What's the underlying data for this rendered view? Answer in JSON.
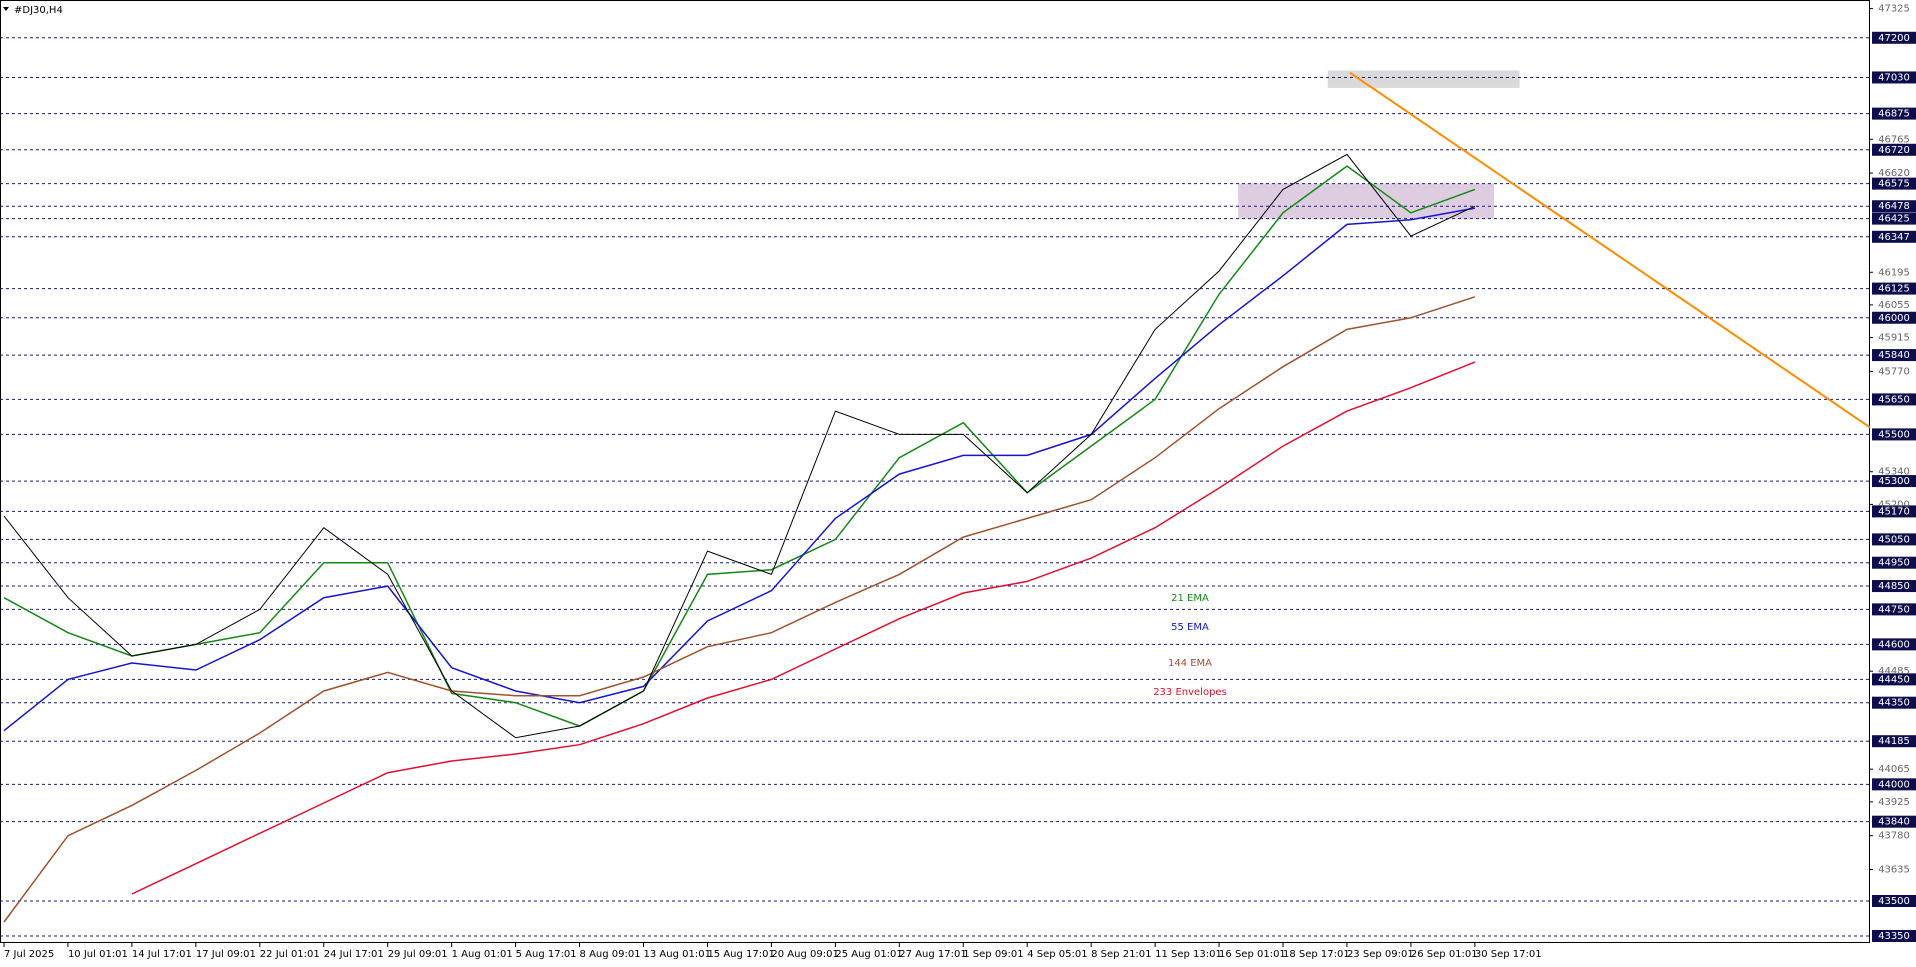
{
  "chart_data": {
    "type": "line",
    "title": "#DJ30,H4",
    "categories": [
      "7 Jul 2025",
      "10 Jul 01:01",
      "14 Jul 17:01",
      "17 Jul 09:01",
      "22 Jul 01:01",
      "24 Jul 17:01",
      "29 Jul 09:01",
      "1 Aug 01:01",
      "5 Aug 17:01",
      "8 Aug 09:01",
      "13 Aug 01:01",
      "15 Aug 17:01",
      "20 Aug 09:01",
      "25 Aug 01:01",
      "27 Aug 17:01",
      "1 Sep 09:01",
      "4 Sep 05:01",
      "8 Sep 21:01",
      "11 Sep 13:01",
      "16 Sep 01:01",
      "18 Sep 17:01",
      "23 Sep 09:01",
      "26 Sep 01:01",
      "30 Sep 17:01"
    ],
    "values": [
      45150,
      44800,
      44550,
      44600,
      44750,
      45100,
      44900,
      44400,
      44200,
      44250,
      44400,
      45000,
      44900,
      45600,
      45500,
      45500,
      45250,
      45500,
      45950,
      46200,
      46550,
      46700,
      46350,
      46478
    ],
    "color": "#000000",
    "series": [
      {
        "name": "21 EMA",
        "color": "#138a13",
        "values": [
          44800,
          44650,
          44550,
          44600,
          44650,
          44950,
          44950,
          44390,
          44350,
          44250,
          44400,
          44900,
          44920,
          45050,
          45400,
          45550,
          45250,
          45450,
          45650,
          46100,
          46450,
          46650,
          46450,
          46550
        ]
      },
      {
        "name": "55 EMA",
        "color": "#1515d0",
        "values": [
          44230,
          44450,
          44520,
          44490,
          44620,
          44800,
          44850,
          44500,
          44400,
          44350,
          44420,
          44700,
          44830,
          45140,
          45330,
          45410,
          45410,
          45500,
          45740,
          45970,
          46180,
          46400,
          46420,
          46470
        ]
      },
      {
        "name": "144 EMA",
        "color": "#a0522d",
        "values": [
          43410,
          43780,
          43910,
          44060,
          44220,
          44400,
          44480,
          44400,
          44380,
          44380,
          44460,
          44590,
          44650,
          44780,
          44900,
          45060,
          45140,
          45220,
          45400,
          45610,
          45790,
          45950,
          46000,
          46090
        ]
      },
      {
        "name": "233 Envelopes",
        "color": "#e0102f",
        "values": [
          null,
          null,
          43530,
          43660,
          43790,
          43920,
          44050,
          44100,
          44130,
          44170,
          44260,
          44370,
          44450,
          44580,
          44710,
          44820,
          44870,
          44970,
          45100,
          45270,
          45450,
          45600,
          45700,
          45810
        ]
      }
    ],
    "ylim": [
      43320,
      47362
    ],
    "levels": [
      47200,
      47030,
      46875,
      46720,
      46575,
      46478,
      46425,
      46347,
      46125,
      46000,
      45840,
      45650,
      45500,
      45300,
      45170,
      45050,
      44950,
      44850,
      44750,
      44600,
      44450,
      44350,
      44185,
      44000,
      43840,
      43500,
      43350
    ],
    "yticks": [
      47325,
      46765,
      46620,
      46195,
      46055,
      45915,
      45770,
      45340,
      45200,
      44485,
      44065,
      43925,
      43780,
      43635
    ],
    "trendline": {
      "color": "#ff8c00",
      "values": [
        47050,
        45530
      ]
    },
    "zones": [
      {
        "from": 47060,
        "to": 46985,
        "color": "#d3d3d3"
      },
      {
        "from": 46575,
        "to": 46425,
        "color": "#d8c4dc"
      }
    ]
  }
}
